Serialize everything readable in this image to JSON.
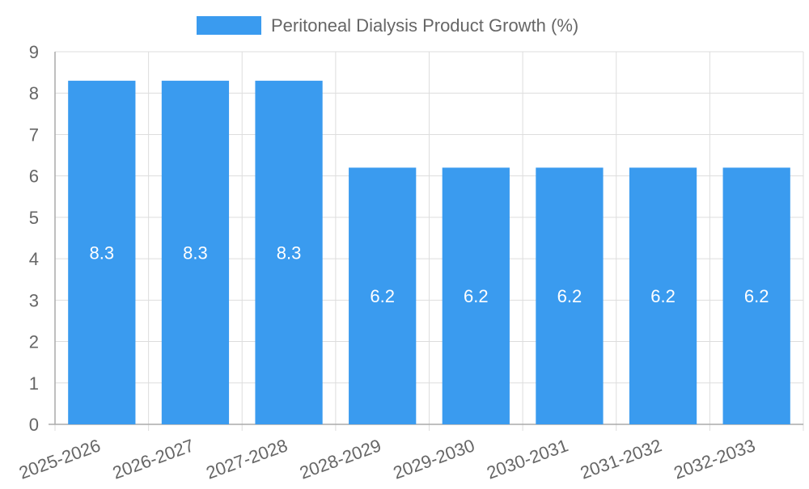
{
  "chart_data": {
    "type": "bar",
    "title": "",
    "xlabel": "",
    "ylabel": "",
    "categories": [
      "2025-2026",
      "2026-2027",
      "2027-2028",
      "2028-2029",
      "2029-2030",
      "2030-2031",
      "2031-2032",
      "2032-2033"
    ],
    "series": [
      {
        "name": "Peritoneal Dialysis Product Growth (%)",
        "values": [
          8.3,
          8.3,
          8.3,
          6.2,
          6.2,
          6.2,
          6.2,
          6.2
        ],
        "color": "#3a9bef"
      }
    ],
    "ylim": [
      0,
      9
    ],
    "yticks": [
      0,
      1,
      2,
      3,
      4,
      5,
      6,
      7,
      8,
      9
    ],
    "grid": true,
    "legend_position": "top-center",
    "data_labels": true
  },
  "colors": {
    "grid": "#dddddd",
    "axis": "#aaaaaa",
    "tick_text": "#666666",
    "legend_text": "#666666",
    "bar_label": "#ffffff"
  }
}
